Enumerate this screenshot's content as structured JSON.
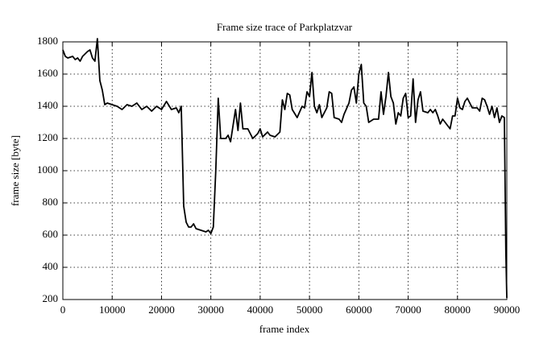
{
  "chart_data": {
    "type": "line",
    "title": "Frame size trace of Parkplatzvar",
    "xlabel": "frame index",
    "ylabel": "frame size [byte]",
    "color": "#000000",
    "grid": true,
    "xlim": [
      0,
      90000
    ],
    "xticks": [
      0,
      10000,
      20000,
      30000,
      40000,
      50000,
      60000,
      70000,
      80000,
      90000
    ],
    "ylim": [
      200,
      1800
    ],
    "yticks": [
      200,
      400,
      600,
      800,
      1000,
      1200,
      1400,
      1600,
      1800
    ],
    "x": [
      0,
      500,
      1000,
      2000,
      2500,
      3000,
      3500,
      4000,
      5000,
      5500,
      6000,
      6500,
      7000,
      7500,
      8000,
      8500,
      9000,
      10000,
      11000,
      12000,
      13000,
      14000,
      15000,
      16000,
      17000,
      18000,
      19000,
      20000,
      21000,
      22000,
      23000,
      23500,
      24000,
      24500,
      25000,
      25500,
      26000,
      26500,
      27000,
      28000,
      29000,
      29500,
      30000,
      30500,
      31000,
      31500,
      32000,
      33000,
      33500,
      34000,
      35000,
      35500,
      36000,
      36500,
      37500,
      38500,
      39500,
      40000,
      40500,
      41500,
      42000,
      43000,
      44000,
      44500,
      45000,
      45500,
      46000,
      46500,
      47500,
      48500,
      49000,
      49500,
      50000,
      50500,
      51000,
      51500,
      52000,
      52500,
      53500,
      54000,
      54500,
      55000,
      56000,
      56500,
      57000,
      58000,
      58500,
      59000,
      59500,
      60000,
      60500,
      61000,
      61500,
      62000,
      63000,
      64000,
      64500,
      65000,
      65500,
      66000,
      66500,
      67000,
      67500,
      68000,
      68500,
      69000,
      69500,
      70000,
      70500,
      71000,
      71500,
      72000,
      72500,
      73000,
      74000,
      74500,
      75000,
      75500,
      76000,
      76500,
      77000,
      78000,
      78500,
      79000,
      79500,
      80000,
      80500,
      81000,
      81500,
      82000,
      83000,
      84000,
      84500,
      85000,
      85500,
      86000,
      86500,
      87000,
      87500,
      88000,
      88500,
      89000,
      89500,
      89800,
      90000
    ],
    "values": [
      1750,
      1710,
      1700,
      1710,
      1690,
      1700,
      1680,
      1710,
      1740,
      1750,
      1700,
      1680,
      1820,
      1560,
      1500,
      1410,
      1420,
      1410,
      1400,
      1380,
      1410,
      1400,
      1420,
      1380,
      1400,
      1370,
      1400,
      1380,
      1430,
      1380,
      1390,
      1360,
      1400,
      780,
      680,
      650,
      650,
      670,
      640,
      630,
      620,
      630,
      610,
      650,
      1000,
      1450,
      1200,
      1200,
      1220,
      1180,
      1380,
      1250,
      1420,
      1260,
      1260,
      1200,
      1230,
      1260,
      1210,
      1240,
      1220,
      1210,
      1240,
      1440,
      1380,
      1480,
      1470,
      1380,
      1330,
      1400,
      1390,
      1490,
      1460,
      1610,
      1400,
      1360,
      1410,
      1330,
      1390,
      1490,
      1480,
      1330,
      1320,
      1300,
      1350,
      1420,
      1500,
      1520,
      1420,
      1600,
      1660,
      1420,
      1400,
      1300,
      1320,
      1320,
      1490,
      1350,
      1460,
      1610,
      1460,
      1420,
      1290,
      1360,
      1340,
      1450,
      1480,
      1330,
      1340,
      1570,
      1300,
      1440,
      1490,
      1370,
      1360,
      1380,
      1360,
      1380,
      1340,
      1290,
      1320,
      1280,
      1260,
      1340,
      1340,
      1450,
      1390,
      1380,
      1430,
      1450,
      1390,
      1390,
      1370,
      1450,
      1440,
      1400,
      1350,
      1400,
      1330,
      1390,
      1300,
      1340,
      1330,
      500,
      210
    ]
  }
}
